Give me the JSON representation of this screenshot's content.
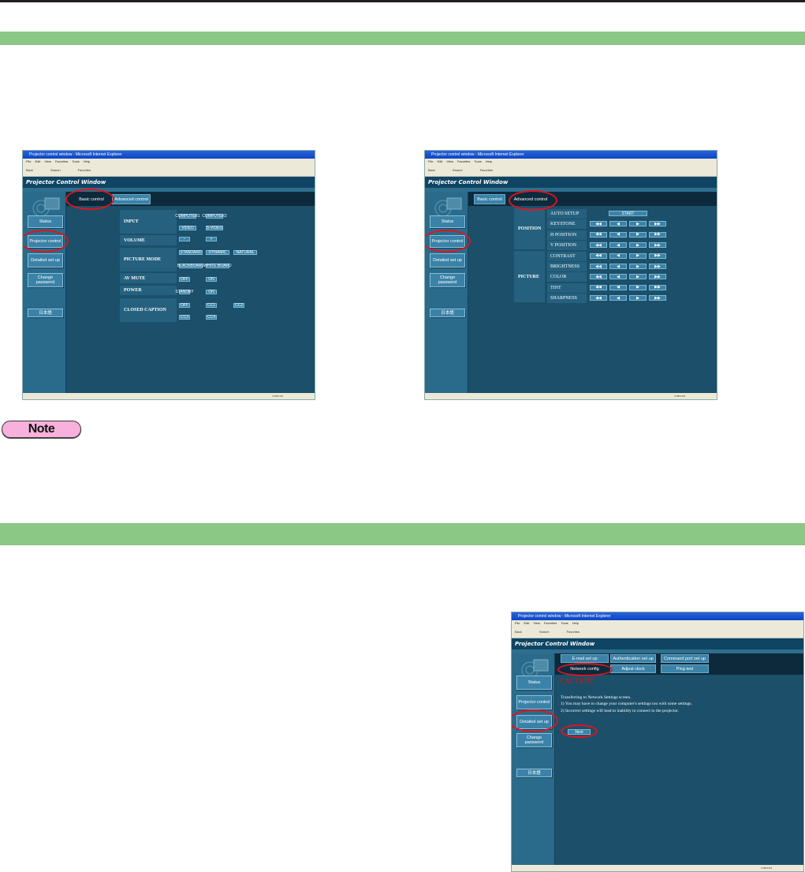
{
  "colors": {
    "section_bar": "#8bc785",
    "note_badge": "#f7b1dc",
    "highlight_ellipse": "#e0141e",
    "page_bg": "#1c4f69"
  },
  "note_label": "Note",
  "browser": {
    "title": "Projector control window - Microsoft Internet Explorer",
    "menu": [
      "File",
      "Edit",
      "View",
      "Favorites",
      "Tools",
      "Help"
    ],
    "toolbar": [
      "Back",
      "Search",
      "Favorites"
    ],
    "app_title": "Projector Control Window",
    "status_zone": "Internet",
    "sidebar": [
      "Status",
      "Projector control",
      "Detailed set up",
      "Change password",
      "日本語"
    ]
  },
  "screen_basic": {
    "tabs": [
      "Basic control",
      "Advanced control"
    ],
    "selected_tab": "Basic control",
    "rows": [
      {
        "label": "INPUT",
        "buttons": [
          "COMPUTER1",
          "COMPUTER2",
          "VIDEO",
          "S-VIDEO"
        ]
      },
      {
        "label": "VOLUME",
        "buttons": [
          "−",
          "+"
        ]
      },
      {
        "label": "PICTURE MODE",
        "buttons": [
          "STANDARD",
          "DYNAMIC",
          "NATURAL",
          "BLACKBOARD",
          "WHITE BOARD"
        ]
      },
      {
        "label": "AV MUTE",
        "buttons": [
          "OFF",
          "ON"
        ]
      },
      {
        "label": "POWER",
        "buttons": [
          "STANDBY",
          "ON"
        ]
      },
      {
        "label": "CLOSED CAPTION",
        "buttons": [
          "OFF",
          "CC1",
          "CC2",
          "CC3",
          "CC4"
        ]
      }
    ]
  },
  "screen_advanced": {
    "tabs": [
      "Basic control",
      "Advanced control"
    ],
    "selected_tab": "Advanced control",
    "groups": [
      "POSITION",
      "PICTURE"
    ],
    "params": [
      "AUTO SETUP",
      "KEYSTONE",
      "H POSITION",
      "V POSITION",
      "CONTRAST",
      "BRIGHTNESS",
      "COLOR",
      "TINT",
      "SHARPNESS"
    ],
    "start_label": "START",
    "step_buttons": [
      "◀◀",
      "◀",
      "▶",
      "▶▶"
    ]
  },
  "screen_network": {
    "tabs": [
      "E-mail set up",
      "Authentication set up",
      "Command port set up",
      "Network config",
      "Adjust clock",
      "Ping test"
    ],
    "selected_tab": "Network config",
    "caution": "CAUTION!",
    "lines": [
      "Transferring to Network Settings screen.",
      "1)  You may have to change your computer's settings too with some settings.",
      "2)  Incorrect settings will lead to inability to connect to the projector."
    ],
    "next_label": "Next"
  }
}
